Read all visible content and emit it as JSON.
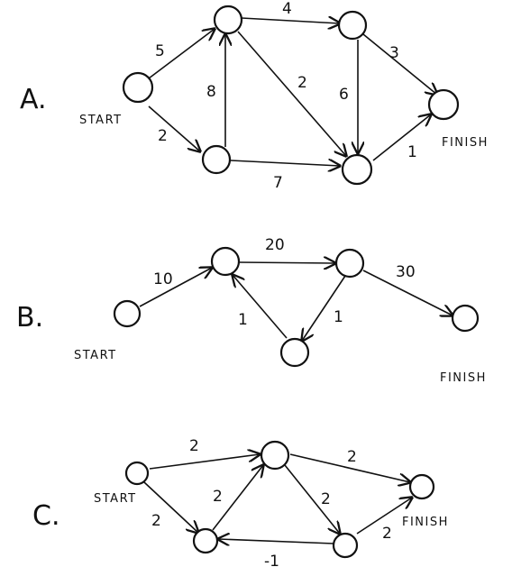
{
  "graphs": [
    {
      "label": "A.",
      "start_label": "START",
      "finish_label": "FINISH",
      "nodes": [
        "S",
        "A",
        "B",
        "C",
        "D",
        "F"
      ],
      "edges": [
        {
          "from": "S",
          "to": "A",
          "weight": "5"
        },
        {
          "from": "S",
          "to": "B",
          "weight": "2"
        },
        {
          "from": "B",
          "to": "A",
          "weight": "8"
        },
        {
          "from": "A",
          "to": "C",
          "weight": "4"
        },
        {
          "from": "A",
          "to": "D",
          "weight": "2"
        },
        {
          "from": "B",
          "to": "D",
          "weight": "7"
        },
        {
          "from": "C",
          "to": "F",
          "weight": "3"
        },
        {
          "from": "C",
          "to": "D",
          "weight": "6"
        },
        {
          "from": "D",
          "to": "F",
          "weight": "1"
        }
      ]
    },
    {
      "label": "B.",
      "start_label": "START",
      "finish_label": "FINISH",
      "nodes": [
        "S",
        "A",
        "B",
        "C",
        "F"
      ],
      "edges": [
        {
          "from": "S",
          "to": "A",
          "weight": "10"
        },
        {
          "from": "A",
          "to": "B",
          "weight": "20"
        },
        {
          "from": "B",
          "to": "F",
          "weight": "30"
        },
        {
          "from": "B",
          "to": "C",
          "weight": "1"
        },
        {
          "from": "C",
          "to": "A",
          "weight": "1"
        }
      ]
    },
    {
      "label": "C.",
      "start_label": "START",
      "finish_label": "FINISH",
      "nodes": [
        "S",
        "A",
        "B",
        "C",
        "F"
      ],
      "edges": [
        {
          "from": "S",
          "to": "A",
          "weight": "2"
        },
        {
          "from": "S",
          "to": "B",
          "weight": "2"
        },
        {
          "from": "B",
          "to": "A",
          "weight": "2"
        },
        {
          "from": "A",
          "to": "F",
          "weight": "2"
        },
        {
          "from": "A",
          "to": "C",
          "weight": "2"
        },
        {
          "from": "C",
          "to": "B",
          "weight": "-1"
        },
        {
          "from": "C",
          "to": "F",
          "weight": "2"
        }
      ]
    }
  ]
}
